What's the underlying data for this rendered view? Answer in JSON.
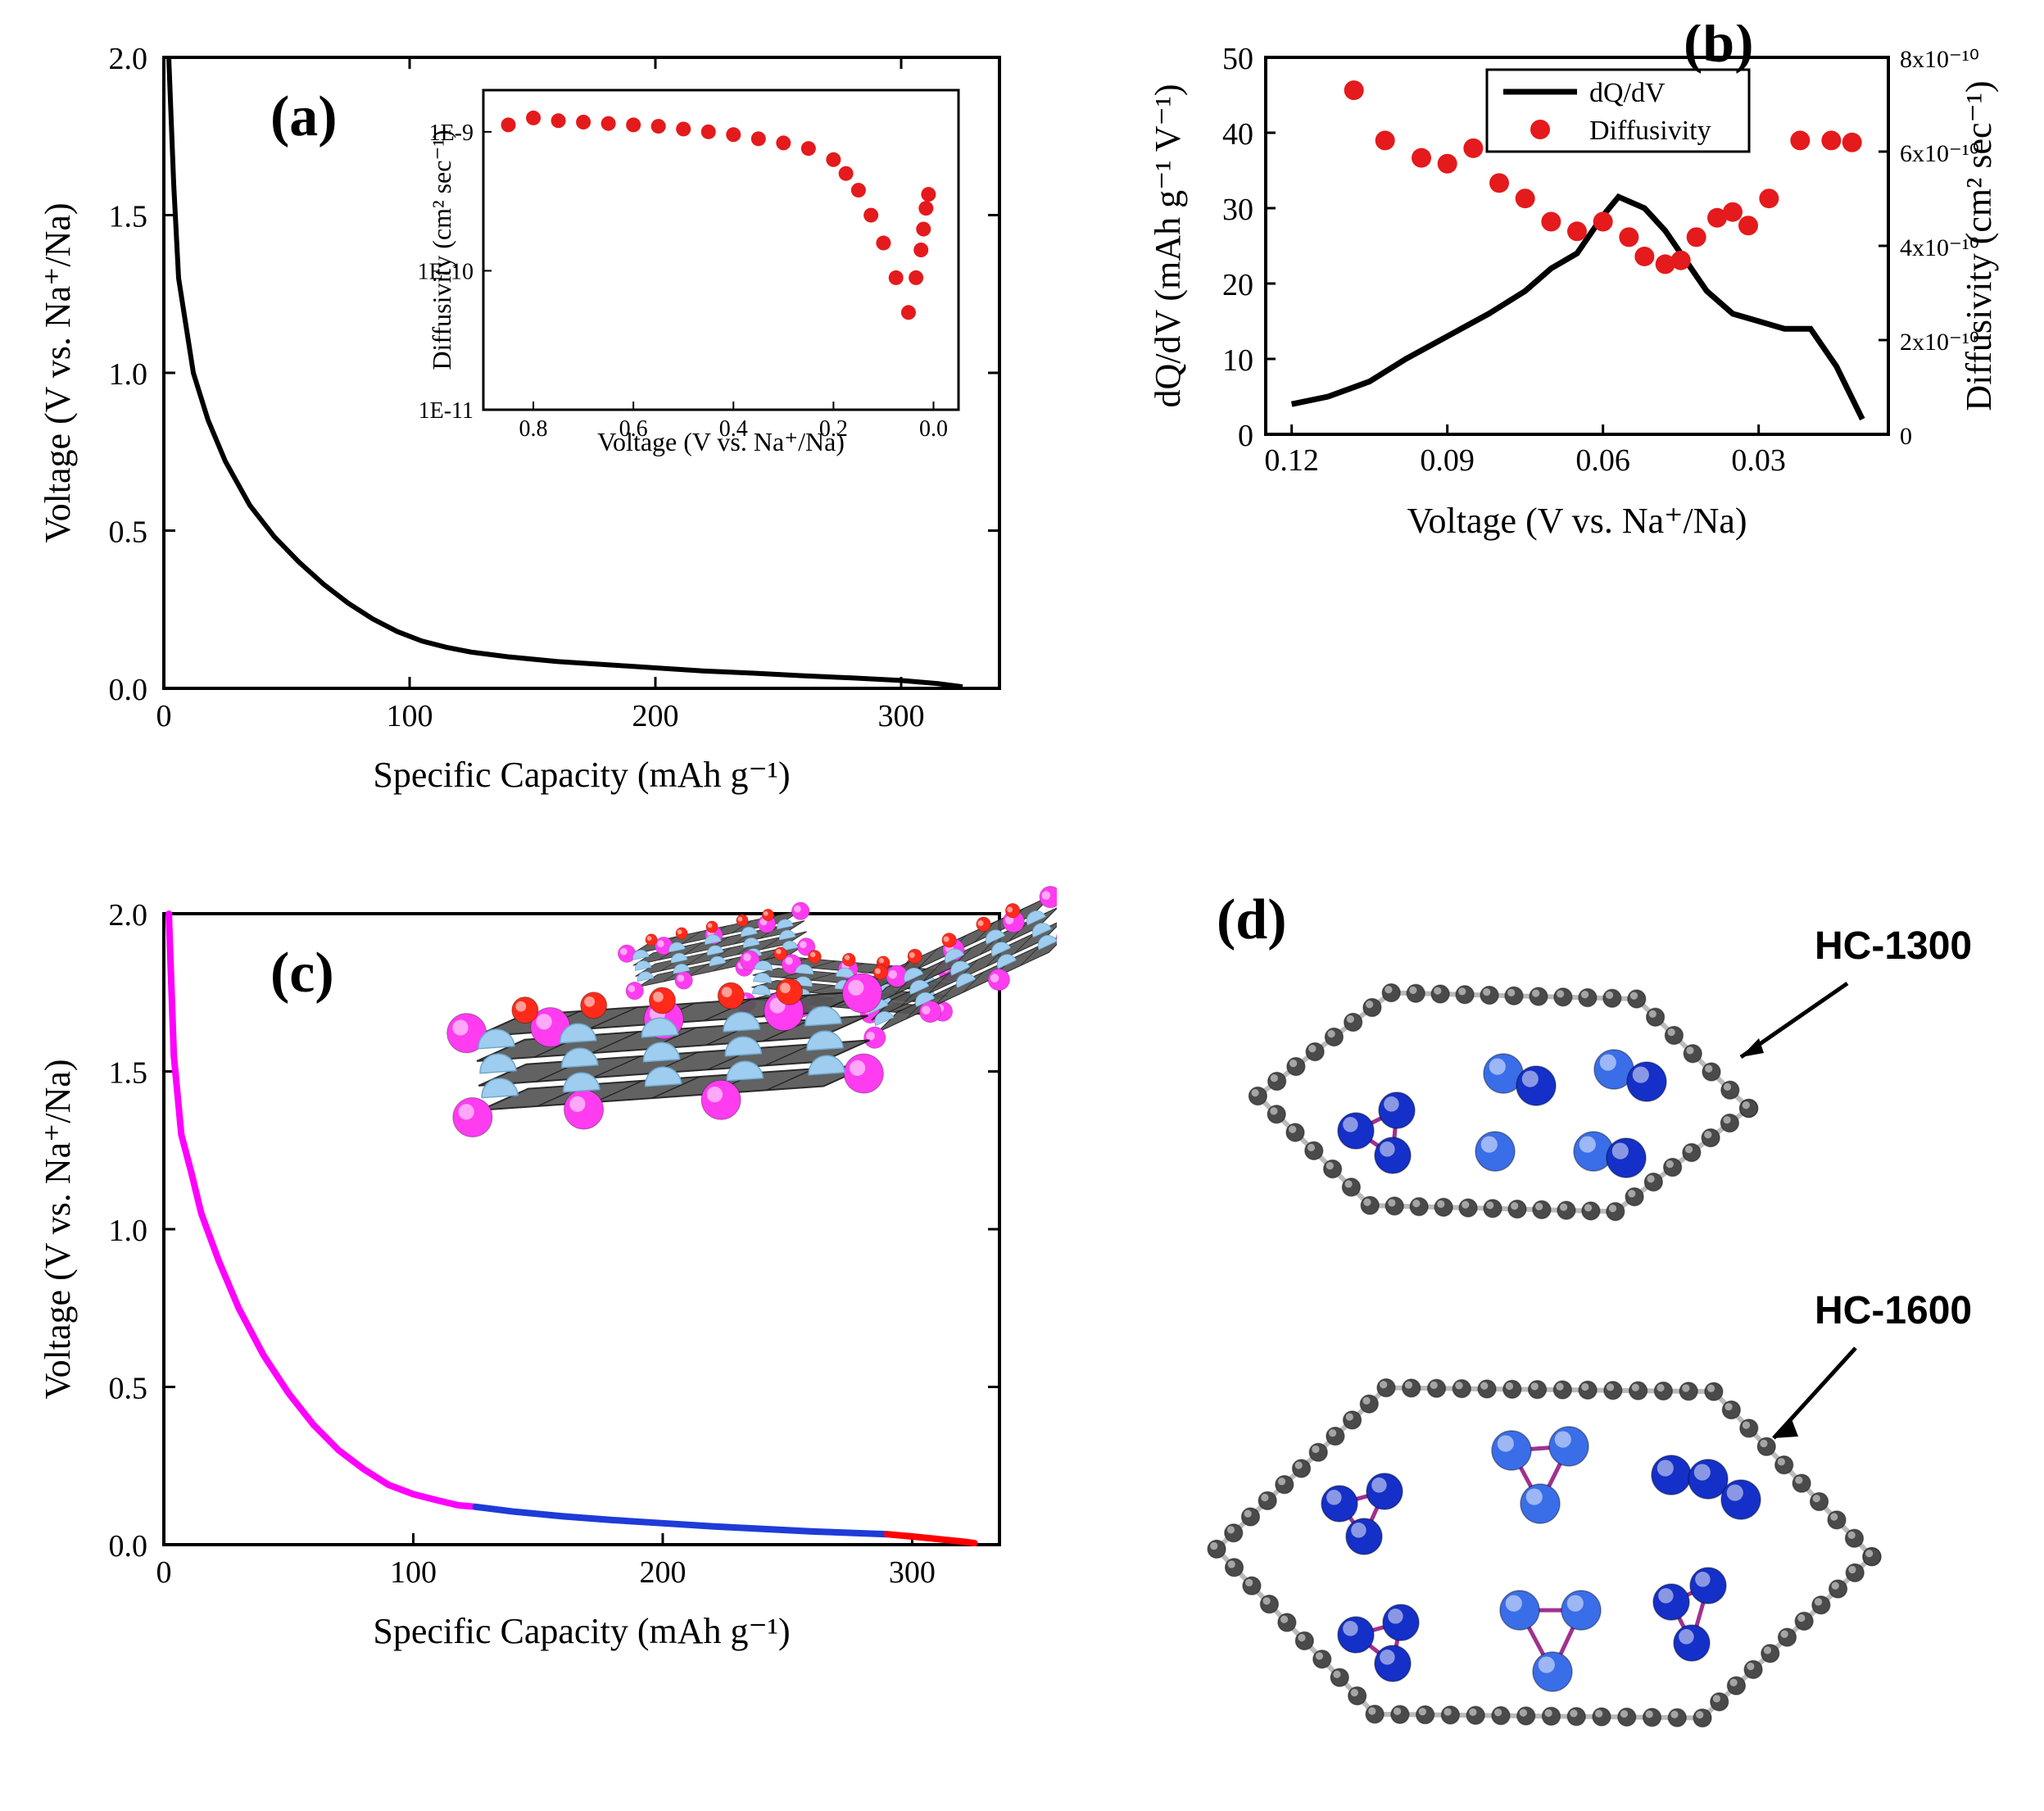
{
  "panel_a": {
    "label": "(a)",
    "xlabel": "Specific Capacity (mAh g⁻¹)",
    "ylabel": "Voltage (V vs. Na⁺/Na)",
    "xlim": [
      0,
      340
    ],
    "ylim": [
      0,
      2.0
    ],
    "xticks": [
      0,
      100,
      200,
      300
    ],
    "yticks": [
      0.0,
      0.5,
      1.0,
      1.5,
      2.0
    ],
    "line_color": "#000000",
    "line_width": 5,
    "curve": [
      [
        2,
        2.0
      ],
      [
        4,
        1.6
      ],
      [
        6,
        1.3
      ],
      [
        9,
        1.15
      ],
      [
        12,
        1.0
      ],
      [
        18,
        0.85
      ],
      [
        25,
        0.72
      ],
      [
        35,
        0.58
      ],
      [
        45,
        0.48
      ],
      [
        55,
        0.4
      ],
      [
        65,
        0.33
      ],
      [
        75,
        0.27
      ],
      [
        85,
        0.22
      ],
      [
        95,
        0.18
      ],
      [
        105,
        0.15
      ],
      [
        115,
        0.13
      ],
      [
        125,
        0.115
      ],
      [
        140,
        0.1
      ],
      [
        160,
        0.085
      ],
      [
        180,
        0.075
      ],
      [
        200,
        0.065
      ],
      [
        220,
        0.055
      ],
      [
        240,
        0.048
      ],
      [
        260,
        0.04
      ],
      [
        280,
        0.033
      ],
      [
        300,
        0.025
      ],
      [
        315,
        0.015
      ],
      [
        325,
        0.005
      ]
    ],
    "inset": {
      "xlabel": "Voltage (V vs. Na⁺/Na)",
      "ylabel": "Diffusivity (cm² sec⁻¹)",
      "xlim": [
        0.9,
        -0.05
      ],
      "ylim_log": [
        -11,
        -8.7
      ],
      "xticks": [
        0.8,
        0.6,
        0.4,
        0.2,
        0.0
      ],
      "ytick_labels": [
        "1E-11",
        "1E-10",
        "1E-9"
      ],
      "ytick_expos": [
        -11,
        -10,
        -9
      ],
      "marker_color": "#e41a1c",
      "points": [
        [
          0.85,
          -8.95
        ],
        [
          0.8,
          -8.9
        ],
        [
          0.75,
          -8.92
        ],
        [
          0.7,
          -8.93
        ],
        [
          0.65,
          -8.94
        ],
        [
          0.6,
          -8.95
        ],
        [
          0.55,
          -8.96
        ],
        [
          0.5,
          -8.98
        ],
        [
          0.45,
          -9.0
        ],
        [
          0.4,
          -9.02
        ],
        [
          0.35,
          -9.05
        ],
        [
          0.3,
          -9.08
        ],
        [
          0.25,
          -9.12
        ],
        [
          0.2,
          -9.2
        ],
        [
          0.175,
          -9.3
        ],
        [
          0.15,
          -9.42
        ],
        [
          0.125,
          -9.6
        ],
        [
          0.1,
          -9.8
        ],
        [
          0.075,
          -10.05
        ],
        [
          0.05,
          -10.3
        ],
        [
          0.035,
          -10.05
        ],
        [
          0.025,
          -9.85
        ],
        [
          0.02,
          -9.7
        ],
        [
          0.015,
          -9.55
        ],
        [
          0.01,
          -9.45
        ]
      ]
    }
  },
  "panel_b": {
    "label": "(b)",
    "xlabel": "Voltage (V vs. Na⁺/Na)",
    "y1label": "dQ/dV (mAh g⁻¹ V⁻¹)",
    "y2label": "Diffusivity (cm² sec⁻¹)",
    "xlim": [
      0.125,
      0.005
    ],
    "y1lim": [
      0,
      50
    ],
    "y2_log": [
      -11,
      -9.05
    ],
    "xticks": [
      0.12,
      0.09,
      0.06,
      0.03
    ],
    "y1ticks": [
      0,
      10,
      20,
      30,
      40,
      50
    ],
    "y2tick_labels": [
      "0",
      "2x10⁻¹⁰",
      "4x10⁻¹⁰",
      "6x10⁻¹⁰",
      "8x10⁻¹⁰"
    ],
    "line_color": "#000000",
    "line_width": 6,
    "marker_color": "#e41a1c",
    "legend": {
      "line": "dQ/dV",
      "marker": "Diffusivity"
    },
    "dqdv": [
      [
        0.12,
        4
      ],
      [
        0.113,
        5
      ],
      [
        0.105,
        7
      ],
      [
        0.098,
        10
      ],
      [
        0.09,
        13
      ],
      [
        0.082,
        16
      ],
      [
        0.075,
        19
      ],
      [
        0.07,
        22
      ],
      [
        0.065,
        24
      ],
      [
        0.06,
        29
      ],
      [
        0.057,
        31.5
      ],
      [
        0.052,
        30
      ],
      [
        0.048,
        27
      ],
      [
        0.044,
        23
      ],
      [
        0.04,
        19
      ],
      [
        0.035,
        16
      ],
      [
        0.03,
        15
      ],
      [
        0.025,
        14
      ],
      [
        0.02,
        14
      ],
      [
        0.015,
        9
      ],
      [
        0.01,
        2
      ]
    ],
    "diff": [
      [
        0.108,
        -9.22
      ],
      [
        0.102,
        -9.48
      ],
      [
        0.095,
        -9.57
      ],
      [
        0.09,
        -9.6
      ],
      [
        0.085,
        -9.52
      ],
      [
        0.08,
        -9.7
      ],
      [
        0.075,
        -9.78
      ],
      [
        0.07,
        -9.9
      ],
      [
        0.065,
        -9.95
      ],
      [
        0.06,
        -9.9
      ],
      [
        0.055,
        -9.98
      ],
      [
        0.052,
        -10.08
      ],
      [
        0.048,
        -10.12
      ],
      [
        0.045,
        -10.1
      ],
      [
        0.042,
        -9.98
      ],
      [
        0.038,
        -9.88
      ],
      [
        0.035,
        -9.85
      ],
      [
        0.032,
        -9.92
      ],
      [
        0.028,
        -9.78
      ],
      [
        0.022,
        -9.48
      ],
      [
        0.016,
        -9.48
      ],
      [
        0.012,
        -9.49
      ]
    ]
  },
  "panel_c": {
    "label": "(c)",
    "xlabel": "Specific Capacity (mAh g⁻¹)",
    "ylabel": "Voltage (V vs. Na⁺/Na)",
    "xlim": [
      0,
      335
    ],
    "ylim": [
      0,
      2.0
    ],
    "xticks": [
      0,
      100,
      200,
      300
    ],
    "yticks": [
      0.0,
      0.5,
      1.0,
      1.5,
      2.0
    ],
    "seg_magenta": {
      "color": "#ff00ff",
      "width": 8,
      "pts": [
        [
          2,
          2.0
        ],
        [
          4,
          1.55
        ],
        [
          7,
          1.3
        ],
        [
          11,
          1.18
        ],
        [
          15,
          1.05
        ],
        [
          22,
          0.9
        ],
        [
          30,
          0.75
        ],
        [
          40,
          0.6
        ],
        [
          50,
          0.48
        ],
        [
          60,
          0.38
        ],
        [
          70,
          0.3
        ],
        [
          80,
          0.24
        ],
        [
          90,
          0.19
        ],
        [
          100,
          0.16
        ],
        [
          110,
          0.14
        ],
        [
          118,
          0.125
        ],
        [
          125,
          0.12
        ]
      ]
    },
    "seg_blue": {
      "color": "#1f3bd8",
      "width": 8,
      "pts": [
        [
          125,
          0.12
        ],
        [
          140,
          0.105
        ],
        [
          160,
          0.09
        ],
        [
          180,
          0.078
        ],
        [
          200,
          0.068
        ],
        [
          220,
          0.058
        ],
        [
          240,
          0.05
        ],
        [
          260,
          0.042
        ],
        [
          280,
          0.036
        ],
        [
          290,
          0.033
        ]
      ]
    },
    "seg_red": {
      "color": "#ff0000",
      "width": 8,
      "pts": [
        [
          290,
          0.033
        ],
        [
          300,
          0.026
        ],
        [
          310,
          0.018
        ],
        [
          320,
          0.01
        ],
        [
          325,
          0.005
        ]
      ]
    },
    "schematic": {
      "sheet_color": "#3a3a3a",
      "sphere_magenta": "#ff3cf0",
      "sphere_red": "#ff2a1a",
      "sphere_blue": "#9ecdf0"
    }
  },
  "panel_d": {
    "label": "(d)",
    "annot_top": "HC-1300",
    "annot_bot": "HC-1600",
    "carbon_color": "#4a4a4a",
    "na_color": "#1430c8",
    "na_color_light": "#3a6de8",
    "bond_color": "#a03090"
  }
}
